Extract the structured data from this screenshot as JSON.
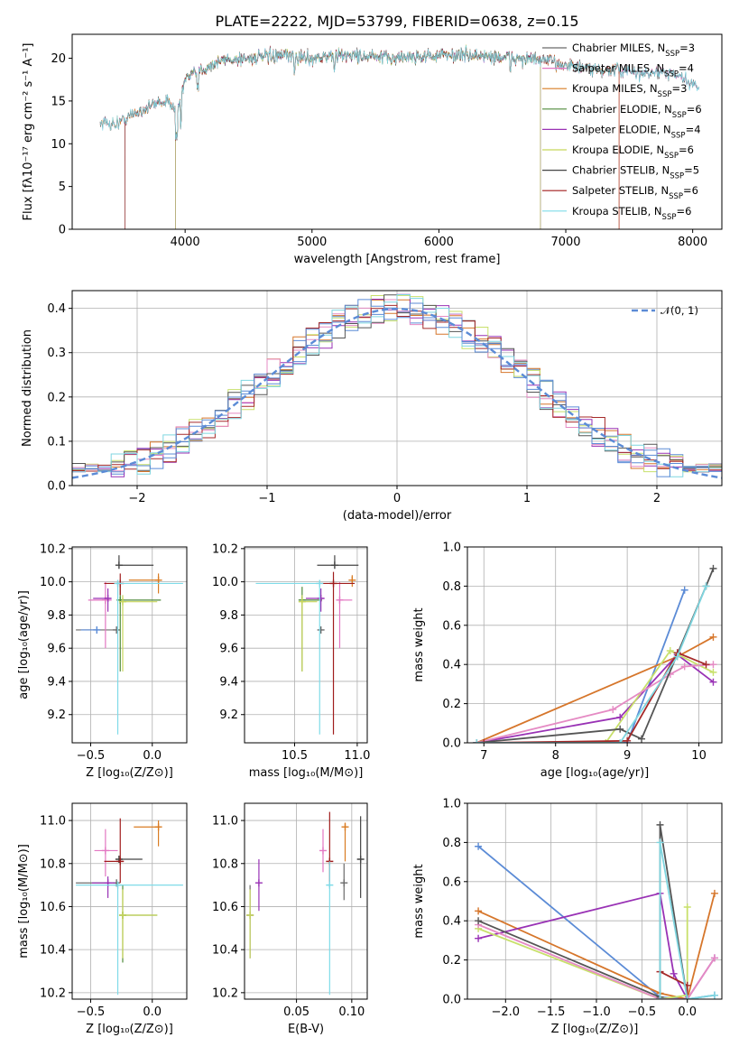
{
  "title": "PLATE=2222, MJD=53799, FIBERID=0638, z=0.15",
  "colors": [
    "#6b6b6b",
    "#e377c2",
    "#d97b22",
    "#4f8a3a",
    "#9932b5",
    "#c8d65b",
    "#444444",
    "#a01c1c",
    "#7fdbe8"
  ],
  "colors_alt": [
    "#5b8bd6",
    "#d6762b",
    "#9932b5",
    "#c8e06b",
    "#e58bc4",
    "#555555",
    "#a52a2a",
    "#7fd6e0"
  ],
  "chart_data": [
    {
      "id": "spectrum",
      "type": "line",
      "xlabel": "wavelength [Angstrom, rest frame]",
      "ylabel": "Flux [fλ10⁻¹⁷ erg cm⁻² s⁻¹ A⁻¹]",
      "xlim": [
        3110,
        8230
      ],
      "ylim": [
        0,
        22.8
      ],
      "xticks": [
        "4000",
        "5000",
        "6000",
        "7000",
        "8000"
      ],
      "yticks": [
        "0",
        "5",
        "10",
        "15",
        "20"
      ],
      "legend_position": "top-right",
      "series": [
        {
          "name": "Chabrier MILES, N",
          "sub": "SSP",
          "suffix": "=3"
        },
        {
          "name": "Salpeter MILES, N",
          "sub": "SSP",
          "suffix": "=4"
        },
        {
          "name": "Kroupa MILES, N",
          "sub": "SSP",
          "suffix": "=3"
        },
        {
          "name": "Chabrier ELODIE, N",
          "sub": "SSP",
          "suffix": "=6"
        },
        {
          "name": "Salpeter ELODIE, N",
          "sub": "SSP",
          "suffix": "=4"
        },
        {
          "name": "Kroupa ELODIE, N",
          "sub": "SSP",
          "suffix": "=6"
        },
        {
          "name": "Chabrier STELIB, N",
          "sub": "SSP",
          "suffix": "=5"
        },
        {
          "name": "Salpeter STELIB, N",
          "sub": "SSP",
          "suffix": "=6"
        },
        {
          "name": "Kroupa STELIB, N",
          "sub": "SSP",
          "suffix": "=6"
        }
      ],
      "model_cutoffs": {
        "stelib_blue": 3525,
        "elodie_blue": 3925,
        "elodie_red": 6800,
        "miles_red": 7420
      },
      "continuum_anchors": {
        "x": [
          3330,
          3450,
          3600,
          3800,
          3950,
          4000,
          4150,
          4300,
          4500,
          4800,
          5000,
          5300,
          5600,
          5800,
          6000,
          6200,
          6400,
          6600,
          6800,
          7000,
          7200,
          7400,
          7600,
          7800,
          8000,
          8050
        ],
        "y": [
          12.5,
          12.3,
          13.5,
          15.0,
          14.5,
          17.5,
          18.8,
          19.8,
          20.0,
          20.3,
          20.0,
          20.4,
          20.0,
          20.2,
          20.3,
          20.4,
          20.2,
          20.0,
          19.8,
          19.3,
          18.6,
          18.6,
          18.2,
          18.3,
          17.0,
          16.0
        ]
      }
    },
    {
      "id": "residuals",
      "type": "histogram",
      "xlabel": "(data-model)/error",
      "ylabel": "Normed distribution",
      "xlim": [
        -2.5,
        2.5
      ],
      "ylim": [
        0,
        0.44
      ],
      "xticks": [
        "−2",
        "−1",
        "0",
        "1",
        "2"
      ],
      "yticks": [
        "0.0",
        "0.1",
        "0.2",
        "0.3",
        "0.4"
      ],
      "legend": "𝒩(0, 1)",
      "legend_position": "top-right",
      "bin_width": 0.1
    },
    {
      "id": "age_vs_Z",
      "type": "errorbar",
      "xlabel": "Z [log₁₀(Z/Z⊙)]",
      "ylabel": "age  [log₁₀(age/yr)]",
      "xlim": [
        -0.65,
        0.28
      ],
      "ylim": [
        9.03,
        10.21
      ],
      "xticks": [
        "−0.5",
        "0.0"
      ],
      "yticks": [
        "9.2",
        "9.4",
        "9.6",
        "9.8",
        "10.0",
        "10.2"
      ],
      "points": [
        {
          "x": -0.29,
          "y": 9.71,
          "xerr": [
            0.33,
            0.0
          ],
          "yerr": [
            0.0,
            0.0
          ],
          "c": 0
        },
        {
          "x": -0.38,
          "y": 9.89,
          "xerr": [
            0.14,
            0.05
          ],
          "yerr": [
            0.29,
            0.11
          ],
          "c": 1
        },
        {
          "x": 0.05,
          "y": 10.01,
          "xerr": [
            0.24,
            0.0
          ],
          "yerr": [
            0.08,
            0.04
          ],
          "c": 2
        },
        {
          "x": -0.26,
          "y": 9.89,
          "xerr": [
            0.0,
            0.33
          ],
          "yerr": [
            0.43,
            0.08
          ],
          "c": 3
        },
        {
          "x": -0.36,
          "y": 9.9,
          "xerr": [
            0.12,
            0.0
          ],
          "yerr": [
            0.08,
            0.06
          ],
          "c": 4
        },
        {
          "x": -0.24,
          "y": 9.88,
          "xerr": [
            0.0,
            0.28
          ],
          "yerr": [
            0.42,
            0.04
          ],
          "c": 5
        },
        {
          "x": -0.27,
          "y": 10.1,
          "xerr": [
            0.0,
            0.28
          ],
          "yerr": [
            0.0,
            0.06
          ],
          "c": 6
        },
        {
          "x": -0.26,
          "y": 9.99,
          "xerr": [
            0.13,
            0.0
          ],
          "yerr": [
            0.07,
            0.06
          ],
          "c": 7
        },
        {
          "x": -0.28,
          "y": 9.99,
          "xerr": [
            0.0,
            0.53
          ],
          "yerr": [
            0.91,
            0.0
          ],
          "c": 8
        },
        {
          "x": -0.45,
          "y": 9.71,
          "xerr": [
            0.13,
            0.0
          ],
          "yerr": [
            0.0,
            0.0
          ],
          "c": 9
        }
      ]
    },
    {
      "id": "age_vs_mass",
      "type": "errorbar",
      "xlabel": "mass [log₁₀(M/M⊙)]",
      "ylabel": "",
      "xlim": [
        10.1,
        11.08
      ],
      "ylim": [
        9.03,
        10.21
      ],
      "xticks": [
        "10.5",
        "11.0"
      ],
      "yticks": [
        "9.2",
        "9.4",
        "9.6",
        "9.8",
        "10.0",
        "10.2"
      ],
      "points": [
        {
          "x": 10.71,
          "y": 9.71,
          "xerr": [
            0.0,
            0.0
          ],
          "yerr": [
            0.0,
            0.0
          ],
          "c": 0
        },
        {
          "x": 10.86,
          "y": 9.89,
          "xerr": [
            0.0,
            0.1
          ],
          "yerr": [
            0.29,
            0.11
          ],
          "c": 1
        },
        {
          "x": 10.96,
          "y": 10.01,
          "xerr": [
            0.0,
            0.0
          ],
          "yerr": [
            0.04,
            0.03
          ],
          "c": 2
        },
        {
          "x": 10.56,
          "y": 9.89,
          "xerr": [
            0.0,
            0.16
          ],
          "yerr": [
            0.43,
            0.08
          ],
          "c": 3
        },
        {
          "x": 10.71,
          "y": 9.9,
          "xerr": [
            0.12,
            0.0
          ],
          "yerr": [
            0.08,
            0.06
          ],
          "c": 4
        },
        {
          "x": 10.56,
          "y": 9.88,
          "xerr": [
            0.0,
            0.12
          ],
          "yerr": [
            0.42,
            0.04
          ],
          "c": 5
        },
        {
          "x": 10.82,
          "y": 10.1,
          "xerr": [
            0.14,
            0.19
          ],
          "yerr": [
            0.0,
            0.06
          ],
          "c": 6
        },
        {
          "x": 10.81,
          "y": 9.99,
          "xerr": [
            0.12,
            0.17
          ],
          "yerr": [
            0.91,
            0.07
          ],
          "c": 7
        },
        {
          "x": 10.7,
          "y": 9.99,
          "xerr": [
            0.51,
            0.0
          ],
          "yerr": [
            0.91,
            0.0
          ],
          "c": 8
        }
      ]
    },
    {
      "id": "weight_vs_age",
      "type": "line",
      "xlabel": "age  [log₁₀(age/yr)]",
      "ylabel": "mass weight",
      "xlim": [
        6.77,
        10.32
      ],
      "ylim": [
        0,
        1.0
      ],
      "xticks": [
        "7",
        "8",
        "9",
        "10"
      ],
      "yticks": [
        "0.0",
        "0.2",
        "0.4",
        "0.6",
        "0.8",
        "1.0"
      ],
      "series": [
        {
          "c": 0,
          "x": [
            7.0,
            9.0,
            9.8
          ],
          "y": [
            0.0,
            0.0,
            0.78
          ]
        },
        {
          "c": 1,
          "x": [
            6.9,
            9.7,
            10.2
          ],
          "y": [
            0.0,
            0.44,
            0.54
          ]
        },
        {
          "c": 2,
          "x": [
            6.9,
            8.9,
            9.7,
            10.2
          ],
          "y": [
            0.0,
            0.13,
            0.45,
            0.31
          ]
        },
        {
          "c": 3,
          "x": [
            7.0,
            8.7,
            9.6,
            10.2
          ],
          "y": [
            0.0,
            0.0,
            0.47,
            0.36
          ]
        },
        {
          "c": 4,
          "x": [
            6.9,
            8.8,
            9.6,
            9.8,
            10.2
          ],
          "y": [
            0.0,
            0.17,
            0.35,
            0.39,
            0.4
          ]
        },
        {
          "c": 5,
          "x": [
            6.9,
            8.9,
            9.2,
            10.1,
            10.2
          ],
          "y": [
            0.0,
            0.07,
            0.02,
            0.8,
            0.89
          ]
        },
        {
          "c": 6,
          "x": [
            7.0,
            9.0,
            9.7,
            10.1
          ],
          "y": [
            0.0,
            0.01,
            0.46,
            0.4
          ]
        },
        {
          "c": 7,
          "x": [
            6.9,
            8.9,
            9.7,
            10.1
          ],
          "y": [
            0.0,
            0.0,
            0.44,
            0.8
          ]
        }
      ]
    },
    {
      "id": "mass_vs_Z",
      "type": "errorbar",
      "xlabel": "Z [log₁₀(Z/Z⊙)]",
      "ylabel": "mass [log₁₀(M/M⊙)]",
      "xlim": [
        -0.65,
        0.28
      ],
      "ylim": [
        10.17,
        11.08
      ],
      "xticks": [
        "−0.5",
        "0.0"
      ],
      "yticks": [
        "10.2",
        "10.4",
        "10.6",
        "10.8",
        "11.0"
      ],
      "points": [
        {
          "x": -0.29,
          "y": 10.71,
          "xerr": [
            0.33,
            0.0
          ],
          "yerr": [
            0.0,
            0.0
          ],
          "c": 0
        },
        {
          "x": -0.38,
          "y": 10.86,
          "xerr": [
            0.09,
            0.1
          ],
          "yerr": [
            0.12,
            0.1
          ],
          "c": 1
        },
        {
          "x": 0.05,
          "y": 10.97,
          "xerr": [
            0.2,
            0.0
          ],
          "yerr": [
            0.09,
            0.03
          ],
          "c": 2
        },
        {
          "x": -0.24,
          "y": 10.56,
          "xerr": [
            0.0,
            0.28
          ],
          "yerr": [
            0.22,
            0.14
          ],
          "c": 3
        },
        {
          "x": -0.36,
          "y": 10.71,
          "xerr": [
            0.13,
            0.06
          ],
          "yerr": [
            0.07,
            0.03
          ],
          "c": 4
        },
        {
          "x": -0.24,
          "y": 10.56,
          "xerr": [
            0.0,
            0.28
          ],
          "yerr": [
            0.2,
            0.12
          ],
          "c": 5
        },
        {
          "x": -0.27,
          "y": 10.82,
          "xerr": [
            0.0,
            0.19
          ],
          "yerr": [
            0.0,
            0.0
          ],
          "c": 6
        },
        {
          "x": -0.26,
          "y": 10.81,
          "xerr": [
            0.13,
            0.0
          ],
          "yerr": [
            0.1,
            0.2
          ],
          "c": 7
        },
        {
          "x": -0.28,
          "y": 10.7,
          "xerr": [
            0.34,
            0.53
          ],
          "yerr": [
            0.51,
            0.0
          ],
          "c": 8
        }
      ]
    },
    {
      "id": "mass_vs_ebv",
      "type": "errorbar",
      "xlabel": "E(B-V)",
      "ylabel": "",
      "xlim": [
        0.003,
        0.114
      ],
      "ylim": [
        10.17,
        11.08
      ],
      "xticks": [
        "0.05",
        "0.10"
      ],
      "yticks": [
        "10.2",
        "10.4",
        "10.6",
        "10.8",
        "11.0"
      ],
      "points": [
        {
          "x": 0.008,
          "y": 10.56,
          "xerr": [
            0.0,
            0.0
          ],
          "yerr": [
            0.2,
            0.14
          ],
          "c": 0
        },
        {
          "x": 0.008,
          "y": 10.56,
          "xerr": [
            0.0,
            0.0
          ],
          "yerr": [
            0.2,
            0.12
          ],
          "c": 5
        },
        {
          "x": 0.016,
          "y": 10.71,
          "xerr": [
            0.0,
            0.0
          ],
          "yerr": [
            0.13,
            0.11
          ],
          "c": 4
        },
        {
          "x": 0.074,
          "y": 10.86,
          "xerr": [
            0.0,
            0.0
          ],
          "yerr": [
            0.1,
            0.1
          ],
          "c": 1
        },
        {
          "x": 0.08,
          "y": 10.81,
          "xerr": [
            0.0,
            0.0
          ],
          "yerr": [
            0.12,
            0.23
          ],
          "c": 7
        },
        {
          "x": 0.08,
          "y": 10.7,
          "xerr": [
            0.0,
            0.0
          ],
          "yerr": [
            0.51,
            0.11
          ],
          "c": 8
        },
        {
          "x": 0.093,
          "y": 10.71,
          "xerr": [
            0.0,
            0.0
          ],
          "yerr": [
            0.08,
            0.09
          ],
          "c": 0
        },
        {
          "x": 0.094,
          "y": 10.97,
          "xerr": [
            0.0,
            0.0
          ],
          "yerr": [
            0.16,
            0.02
          ],
          "c": 2
        },
        {
          "x": 0.108,
          "y": 10.82,
          "xerr": [
            0.0,
            0.0
          ],
          "yerr": [
            0.18,
            0.2
          ],
          "c": 6
        }
      ]
    },
    {
      "id": "weight_vs_Z",
      "type": "line",
      "xlabel": "Z [log₁₀(Z/Z⊙)]",
      "ylabel": "mass weight",
      "xlim": [
        -2.42,
        0.38
      ],
      "ylim": [
        0,
        1.0
      ],
      "xticks": [
        "−2.0",
        "−1.5",
        "−1.0",
        "−0.5",
        "0.0"
      ],
      "yticks": [
        "0.0",
        "0.2",
        "0.4",
        "0.6",
        "0.8",
        "1.0"
      ],
      "series": [
        {
          "c": 0,
          "x": [
            -2.3,
            -0.3,
            0.0,
            0.3
          ],
          "y": [
            0.78,
            0.01,
            0.0,
            0.02
          ]
        },
        {
          "c": 1,
          "x": [
            -2.3,
            -0.3,
            0.0,
            0.3
          ],
          "y": [
            0.45,
            0.03,
            0.0,
            0.54
          ]
        },
        {
          "c": 2,
          "x": [
            -2.3,
            -0.3,
            -0.15,
            0.0,
            0.3
          ],
          "y": [
            0.31,
            0.54,
            0.13,
            0.0,
            0.21
          ]
        },
        {
          "c": 3,
          "x": [
            -2.3,
            -0.3,
            0.0,
            0.0
          ],
          "y": [
            0.36,
            0.0,
            0.02,
            0.47
          ]
        },
        {
          "c": 4,
          "x": [
            -2.3,
            -0.3,
            0.0,
            0.3
          ],
          "y": [
            0.38,
            0.0,
            0.0,
            0.21
          ]
        },
        {
          "c": 5,
          "x": [
            -2.3,
            -0.3,
            -0.3,
            0.0
          ],
          "y": [
            0.4,
            0.01,
            0.89,
            0.0
          ]
        },
        {
          "c": 6,
          "x": [
            -0.3,
            0.0,
            0.0
          ],
          "y": [
            0.14,
            0.07,
            0.0
          ]
        },
        {
          "c": 7,
          "x": [
            -0.3,
            -0.3,
            0.0,
            0.3
          ],
          "y": [
            0.0,
            0.8,
            0.0,
            0.02
          ]
        }
      ]
    }
  ]
}
